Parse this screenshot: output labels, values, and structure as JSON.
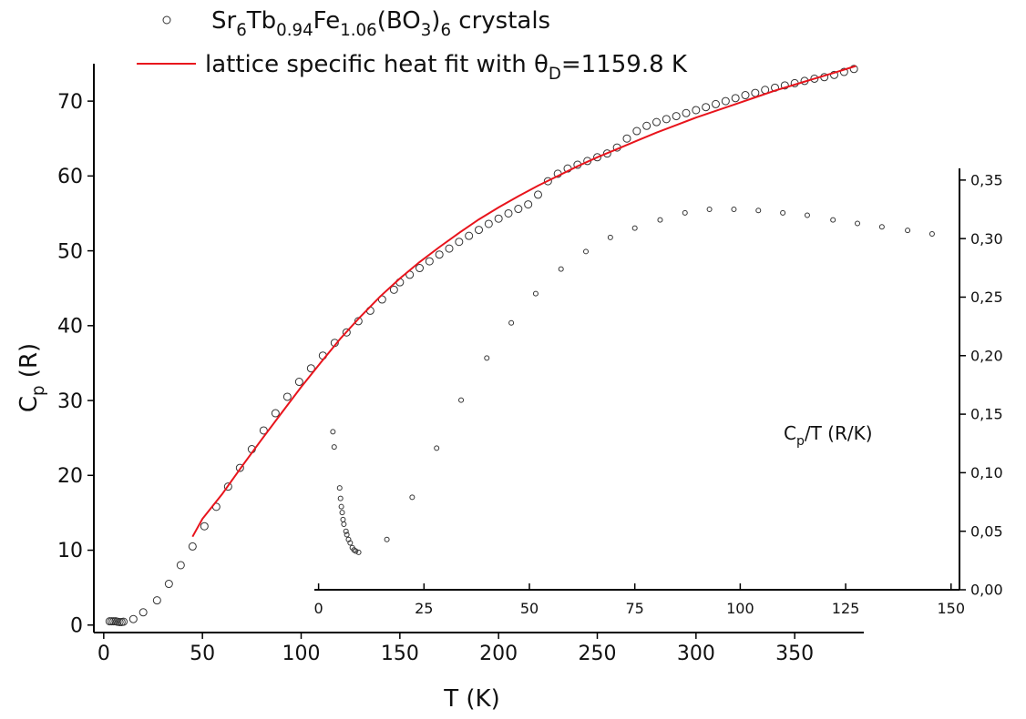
{
  "chart_data": [
    {
      "type": "scatter",
      "x_label": [
        {
          "t": "T (K)"
        }
      ],
      "y_label": [
        {
          "t": "C"
        },
        {
          "t": "p",
          "sub": true
        },
        {
          "t": " (R)"
        }
      ],
      "xlim": [
        -5,
        385
      ],
      "ylim": [
        -1,
        75
      ],
      "xticks": [
        0,
        50,
        100,
        150,
        200,
        250,
        300,
        350
      ],
      "yticks": [
        0,
        10,
        20,
        30,
        40,
        50,
        60,
        70
      ],
      "series": [
        {
          "name": [
            {
              "t": "Sr"
            },
            {
              "t": "6",
              "sub": true
            },
            {
              "t": "Tb"
            },
            {
              "t": "0.94",
              "sub": true
            },
            {
              "t": "Fe"
            },
            {
              "t": "1.06",
              "sub": true
            },
            {
              "t": "(BO"
            },
            {
              "t": "3",
              "sub": true
            },
            {
              "t": ")"
            },
            {
              "t": "6",
              "sub": true
            },
            {
              "t": " crystals"
            }
          ],
          "mark": "circle",
          "color": "#333333",
          "x": [
            3,
            4,
            5,
            6,
            7,
            8,
            9,
            10,
            15,
            20,
            27,
            33,
            39,
            45,
            51,
            57,
            63,
            69,
            75,
            81,
            87,
            93,
            99,
            105,
            111,
            117,
            123,
            129,
            135,
            141,
            147,
            150,
            155,
            160,
            165,
            170,
            175,
            180,
            185,
            190,
            195,
            200,
            205,
            210,
            215,
            220,
            225,
            230,
            235,
            240,
            245,
            250,
            255,
            260,
            265,
            270,
            275,
            280,
            285,
            290,
            295,
            300,
            305,
            310,
            315,
            320,
            325,
            330,
            335,
            340,
            345,
            350,
            355,
            360,
            365,
            370,
            375,
            380
          ],
          "values": [
            0.5,
            0.5,
            0.5,
            0.5,
            0.45,
            0.4,
            0.4,
            0.45,
            0.8,
            1.7,
            3.3,
            5.5,
            8,
            10.5,
            13.2,
            15.8,
            18.5,
            21,
            23.5,
            26,
            28.3,
            30.5,
            32.5,
            34.3,
            36,
            37.7,
            39.1,
            40.6,
            42,
            43.5,
            44.8,
            45.8,
            46.8,
            47.7,
            48.6,
            49.5,
            50.3,
            51.2,
            52.0,
            52.8,
            53.6,
            54.3,
            55.0,
            55.6,
            56.2,
            57.5,
            59.3,
            60.3,
            61.0,
            61.5,
            62.0,
            62.5,
            63.0,
            63.8,
            65.0,
            66.0,
            66.7,
            67.2,
            67.6,
            68.0,
            68.4,
            68.8,
            69.2,
            69.6,
            70.0,
            70.4,
            70.8,
            71.1,
            71.5,
            71.8,
            72.1,
            72.4,
            72.7,
            73.0,
            73.2,
            73.5,
            73.9,
            74.3
          ]
        },
        {
          "name": [
            {
              "t": "lattice specific heat fit with θ"
            },
            {
              "t": "D",
              "sub": true
            },
            {
              "t": "=1159.8 K"
            }
          ],
          "mark": "line",
          "color": "#e8141c",
          "x": [
            45,
            50,
            60,
            70,
            80,
            90,
            100,
            110,
            120,
            130,
            140,
            150,
            160,
            170,
            180,
            190,
            200,
            210,
            220,
            230,
            240,
            250,
            260,
            270,
            280,
            290,
            300,
            310,
            320,
            330,
            340,
            350,
            360,
            370,
            381
          ],
          "values": [
            11.8,
            14.2,
            17.5,
            21.2,
            24.8,
            28.3,
            31.8,
            35.1,
            38.3,
            41.2,
            43.9,
            46.3,
            48.5,
            50.5,
            52.4,
            54.2,
            55.8,
            57.3,
            58.7,
            60.0,
            61.3,
            62.5,
            63.6,
            64.7,
            65.8,
            66.8,
            67.8,
            68.7,
            69.6,
            70.5,
            71.4,
            72.2,
            73.0,
            73.8,
            74.7
          ]
        }
      ]
    },
    {
      "type": "scatter",
      "y_label": [
        {
          "t": "C"
        },
        {
          "t": "p",
          "sub": true
        },
        {
          "t": "/T (R/K)"
        }
      ],
      "xlim": [
        -1,
        152
      ],
      "ylim": [
        0,
        0.36
      ],
      "xticks": [
        0,
        25,
        50,
        75,
        100,
        125,
        150
      ],
      "yticks": [
        {
          "value": 0,
          "label": "0,00"
        },
        {
          "value": 0.05,
          "label": "0,05"
        },
        {
          "value": 0.1,
          "label": "0,10"
        },
        {
          "value": 0.15,
          "label": "0,15"
        },
        {
          "value": 0.2,
          "label": "0,20"
        },
        {
          "value": 0.25,
          "label": "0,25"
        },
        {
          "value": 0.3,
          "label": "0,30"
        },
        {
          "value": 0.35,
          "label": "0,35"
        }
      ],
      "series": [
        {
          "mark": "circle",
          "color": "#333333",
          "x": [
            3.4,
            3.7,
            5.0,
            5.2,
            5.4,
            5.6,
            5.8,
            6.0,
            6.5,
            6.7,
            7.1,
            7.5,
            8.0,
            8.4,
            8.8,
            9.5,
            16.2,
            22.2,
            28.0,
            33.8,
            39.9,
            45.7,
            51.5,
            57.5,
            63.4,
            69.2,
            75.0,
            81.0,
            86.9,
            92.7,
            98.5,
            104.3,
            110.1,
            115.9,
            122.0,
            127.8,
            133.6,
            139.7,
            145.5
          ],
          "values": [
            0.135,
            0.122,
            0.087,
            0.078,
            0.071,
            0.066,
            0.06,
            0.056,
            0.05,
            0.047,
            0.043,
            0.04,
            0.036,
            0.034,
            0.033,
            0.032,
            0.043,
            0.079,
            0.121,
            0.162,
            0.198,
            0.228,
            0.253,
            0.274,
            0.289,
            0.301,
            0.309,
            0.316,
            0.322,
            0.325,
            0.325,
            0.324,
            0.322,
            0.32,
            0.316,
            0.313,
            0.31,
            0.307,
            0.304
          ]
        }
      ]
    }
  ]
}
